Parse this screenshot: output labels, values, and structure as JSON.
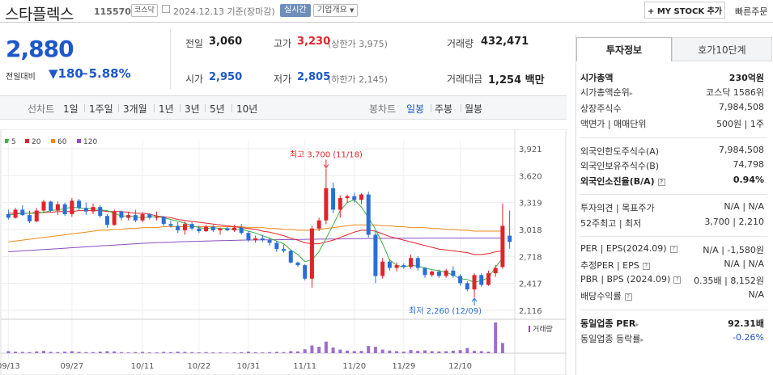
{
  "header": {
    "title": "스타플렉스",
    "code": "115570",
    "market": "코스닥",
    "date_text": "2024.12.13  기준(장마감)",
    "realtime_label": "실시간",
    "overview_label": "기업개요",
    "mystock_label": "+ MY STOCK 추가",
    "quick_order_label": "빠른주문"
  },
  "quote": {
    "price": "2,880",
    "change_label": "전일대비",
    "change": "▼180",
    "change_pct": "−5.88%",
    "prev_close_label": "전일",
    "prev_close": "3,060",
    "high_label": "고가",
    "high": "3,230",
    "upper_limit": "(상한가 3,975)",
    "volume_label": "거래량",
    "volume": "432,471",
    "open_label": "시가",
    "open": "2,950",
    "low_label": "저가",
    "low": "2,805",
    "lower_limit": "(하한가 2,145)",
    "value_label": "거래대금",
    "value": "1,254 백만"
  },
  "toolbar": {
    "line_chart_label": "선차트",
    "ranges": [
      "1일",
      "1주일",
      "3개월",
      "1년",
      "3년",
      "5년",
      "10년"
    ],
    "candle_chart_label": "봉차트",
    "periods": [
      "일봉",
      "주봉",
      "월봉"
    ],
    "active_period": "일봉"
  },
  "chart_data": {
    "type": "candlestick",
    "ma_legend": [
      {
        "name": "5",
        "color": "#3cb043"
      },
      {
        "name": "20",
        "color": "#e0242c"
      },
      {
        "name": "60",
        "color": "#f08a1a"
      },
      {
        "name": "120",
        "color": "#8a4fc0"
      }
    ],
    "y_ticks": [
      "3,921",
      "3,620",
      "3,319",
      "3,018",
      "2,718",
      "2,417",
      "2,116"
    ],
    "ylim": [
      2116,
      3921
    ],
    "x_ticks": [
      "09/13",
      "09/27",
      "10/11",
      "10/22",
      "10/31",
      "11/11",
      "11/20",
      "11/29",
      "12/10"
    ],
    "high_annotation": "최고 3,700 (11/18)",
    "low_annotation": "최저 2,260 (12/09)",
    "volume_label": "거래량",
    "candles": [
      {
        "o": 3190,
        "h": 3240,
        "l": 3130,
        "c": 3150
      },
      {
        "o": 3150,
        "h": 3260,
        "l": 3140,
        "c": 3240
      },
      {
        "o": 3240,
        "h": 3290,
        "l": 3170,
        "c": 3180
      },
      {
        "o": 3180,
        "h": 3230,
        "l": 3090,
        "c": 3110
      },
      {
        "o": 3110,
        "h": 3260,
        "l": 3100,
        "c": 3230
      },
      {
        "o": 3230,
        "h": 3350,
        "l": 3200,
        "c": 3330
      },
      {
        "o": 3330,
        "h": 3340,
        "l": 3210,
        "c": 3230
      },
      {
        "o": 3230,
        "h": 3330,
        "l": 3180,
        "c": 3300
      },
      {
        "o": 3300,
        "h": 3320,
        "l": 3170,
        "c": 3190
      },
      {
        "o": 3190,
        "h": 3370,
        "l": 3160,
        "c": 3340
      },
      {
        "o": 3340,
        "h": 3360,
        "l": 3230,
        "c": 3260
      },
      {
        "o": 3260,
        "h": 3320,
        "l": 3180,
        "c": 3220
      },
      {
        "o": 3220,
        "h": 3310,
        "l": 3190,
        "c": 3270
      },
      {
        "o": 3270,
        "h": 3290,
        "l": 3150,
        "c": 3170
      },
      {
        "o": 3170,
        "h": 3190,
        "l": 3040,
        "c": 3070
      },
      {
        "o": 3070,
        "h": 3240,
        "l": 3060,
        "c": 3220
      },
      {
        "o": 3220,
        "h": 3230,
        "l": 3120,
        "c": 3150
      },
      {
        "o": 3150,
        "h": 3220,
        "l": 3120,
        "c": 3180
      },
      {
        "o": 3180,
        "h": 3240,
        "l": 3100,
        "c": 3120
      },
      {
        "o": 3120,
        "h": 3210,
        "l": 3100,
        "c": 3190
      },
      {
        "o": 3190,
        "h": 3200,
        "l": 3130,
        "c": 3150
      },
      {
        "o": 3150,
        "h": 3220,
        "l": 3120,
        "c": 3160
      },
      {
        "o": 3160,
        "h": 3170,
        "l": 3060,
        "c": 3080
      },
      {
        "o": 3080,
        "h": 3120,
        "l": 3040,
        "c": 3060
      },
      {
        "o": 3060,
        "h": 3100,
        "l": 2980,
        "c": 3010
      },
      {
        "o": 3010,
        "h": 3110,
        "l": 2960,
        "c": 3080
      },
      {
        "o": 3080,
        "h": 3100,
        "l": 3010,
        "c": 3030
      },
      {
        "o": 3030,
        "h": 3060,
        "l": 2980,
        "c": 3000
      },
      {
        "o": 3000,
        "h": 3070,
        "l": 2990,
        "c": 3050
      },
      {
        "o": 3050,
        "h": 3070,
        "l": 2990,
        "c": 3010
      },
      {
        "o": 3010,
        "h": 3040,
        "l": 2960,
        "c": 3030
      },
      {
        "o": 3030,
        "h": 3050,
        "l": 3000,
        "c": 3010
      },
      {
        "o": 3010,
        "h": 3070,
        "l": 2990,
        "c": 3040
      },
      {
        "o": 3040,
        "h": 3080,
        "l": 2960,
        "c": 2980
      },
      {
        "o": 2980,
        "h": 3000,
        "l": 2880,
        "c": 2900
      },
      {
        "o": 2900,
        "h": 2950,
        "l": 2870,
        "c": 2920
      },
      {
        "o": 2920,
        "h": 2960,
        "l": 2880,
        "c": 2900
      },
      {
        "o": 2900,
        "h": 2930,
        "l": 2840,
        "c": 2870
      },
      {
        "o": 2870,
        "h": 2890,
        "l": 2770,
        "c": 2800
      },
      {
        "o": 2800,
        "h": 2850,
        "l": 2760,
        "c": 2780
      },
      {
        "o": 2780,
        "h": 2790,
        "l": 2640,
        "c": 2650
      },
      {
        "o": 2650,
        "h": 2660,
        "l": 2600,
        "c": 2620
      },
      {
        "o": 2620,
        "h": 2630,
        "l": 2450,
        "c": 2470
      },
      {
        "o": 2470,
        "h": 3060,
        "l": 2370,
        "c": 3030
      },
      {
        "o": 3030,
        "h": 3150,
        "l": 3000,
        "c": 3120
      },
      {
        "o": 3120,
        "h": 3700,
        "l": 3080,
        "c": 3480
      },
      {
        "o": 3480,
        "h": 3540,
        "l": 3200,
        "c": 3240
      },
      {
        "o": 3240,
        "h": 3400,
        "l": 3150,
        "c": 3370
      },
      {
        "o": 3370,
        "h": 3410,
        "l": 3320,
        "c": 3390
      },
      {
        "o": 3390,
        "h": 3430,
        "l": 3320,
        "c": 3350
      },
      {
        "o": 3350,
        "h": 3420,
        "l": 3300,
        "c": 3410
      },
      {
        "o": 3410,
        "h": 3440,
        "l": 2930,
        "c": 2960
      },
      {
        "o": 2960,
        "h": 3000,
        "l": 2420,
        "c": 2500
      },
      {
        "o": 2500,
        "h": 2700,
        "l": 2470,
        "c": 2660
      },
      {
        "o": 2660,
        "h": 2690,
        "l": 2560,
        "c": 2590
      },
      {
        "o": 2590,
        "h": 2650,
        "l": 2550,
        "c": 2620
      },
      {
        "o": 2620,
        "h": 2640,
        "l": 2580,
        "c": 2600
      },
      {
        "o": 2600,
        "h": 2740,
        "l": 2580,
        "c": 2700
      },
      {
        "o": 2700,
        "h": 2720,
        "l": 2560,
        "c": 2590
      },
      {
        "o": 2590,
        "h": 2600,
        "l": 2480,
        "c": 2510
      },
      {
        "o": 2510,
        "h": 2560,
        "l": 2490,
        "c": 2550
      },
      {
        "o": 2550,
        "h": 2570,
        "l": 2480,
        "c": 2500
      },
      {
        "o": 2500,
        "h": 2580,
        "l": 2480,
        "c": 2560
      },
      {
        "o": 2560,
        "h": 2610,
        "l": 2480,
        "c": 2500
      },
      {
        "o": 2500,
        "h": 2520,
        "l": 2390,
        "c": 2420
      },
      {
        "o": 2420,
        "h": 2440,
        "l": 2330,
        "c": 2350
      },
      {
        "o": 2350,
        "h": 2530,
        "l": 2260,
        "c": 2510
      },
      {
        "o": 2510,
        "h": 2530,
        "l": 2380,
        "c": 2400
      },
      {
        "o": 2400,
        "h": 2560,
        "l": 2390,
        "c": 2530
      },
      {
        "o": 2530,
        "h": 2620,
        "l": 2490,
        "c": 2590
      },
      {
        "o": 2600,
        "h": 3310,
        "l": 2580,
        "c": 3060
      },
      {
        "o": 2950,
        "h": 3230,
        "l": 2805,
        "c": 2880
      }
    ],
    "ma5": [
      3180,
      3190,
      3200,
      3200,
      3200,
      3210,
      3230,
      3240,
      3250,
      3270,
      3260,
      3250,
      3250,
      3240,
      3230,
      3200,
      3170,
      3170,
      3160,
      3150,
      3160,
      3160,
      3150,
      3130,
      3110,
      3090,
      3060,
      3040,
      3030,
      3040,
      3030,
      3030,
      3020,
      3020,
      3000,
      2980,
      2950,
      2920,
      2890,
      2860,
      2790,
      2740,
      2660,
      2680,
      2770,
      2920,
      3070,
      3230,
      3320,
      3350,
      3270,
      3150,
      3020,
      2860,
      2680,
      2620,
      2600,
      2620,
      2610,
      2590,
      2570,
      2560,
      2540,
      2510,
      2470,
      2460,
      2430,
      2450,
      2480,
      2600,
      2700
    ],
    "ma20": [
      3200,
      3200,
      3200,
      3200,
      3210,
      3210,
      3210,
      3220,
      3220,
      3220,
      3230,
      3230,
      3230,
      3230,
      3220,
      3220,
      3220,
      3210,
      3200,
      3200,
      3190,
      3170,
      3160,
      3150,
      3130,
      3120,
      3110,
      3100,
      3090,
      3080,
      3070,
      3060,
      3050,
      3040,
      3030,
      3020,
      3000,
      2990,
      2970,
      2950,
      2920,
      2900,
      2870,
      2860,
      2860,
      2880,
      2900,
      2930,
      2960,
      2990,
      3010,
      3010,
      3000,
      2970,
      2940,
      2920,
      2900,
      2880,
      2860,
      2840,
      2820,
      2800,
      2790,
      2780,
      2770,
      2760,
      2740,
      2740,
      2750,
      2770,
      2780
    ],
    "ma60": [
      2880,
      2890,
      2900,
      2910,
      2920,
      2930,
      2940,
      2950,
      2960,
      2970,
      2980,
      2990,
      3000,
      3010,
      3010,
      3020,
      3020,
      3030,
      3030,
      3040,
      3040,
      3040,
      3050,
      3050,
      3050,
      3050,
      3050,
      3050,
      3050,
      3050,
      3050,
      3050,
      3050,
      3050,
      3040,
      3040,
      3040,
      3030,
      3030,
      3020,
      3020,
      3010,
      3010,
      3010,
      3020,
      3030,
      3040,
      3050,
      3060,
      3070,
      3070,
      3070,
      3070,
      3060,
      3060,
      3050,
      3050,
      3040,
      3040,
      3040,
      3030,
      3030,
      3020,
      3020,
      3010,
      3010,
      3000,
      3000,
      3000,
      3000,
      3000
    ],
    "ma120": [
      2770,
      2775,
      2780,
      2785,
      2790,
      2795,
      2800,
      2805,
      2810,
      2815,
      2820,
      2825,
      2830,
      2835,
      2840,
      2845,
      2850,
      2855,
      2860,
      2865,
      2868,
      2871,
      2874,
      2877,
      2880,
      2883,
      2886,
      2888,
      2890,
      2892,
      2894,
      2896,
      2898,
      2900,
      2901,
      2902,
      2903,
      2904,
      2905,
      2906,
      2907,
      2908,
      2909,
      2910,
      2911,
      2912,
      2913,
      2914,
      2915,
      2916,
      2917,
      2918,
      2919,
      2920,
      2920,
      2921,
      2921,
      2922,
      2922,
      2923,
      2923,
      2923,
      2923,
      2923,
      2923,
      2923,
      2923,
      2923,
      2923,
      2923,
      2923
    ],
    "volume": [
      8,
      6,
      5,
      4,
      7,
      9,
      5,
      4,
      6,
      8,
      5,
      4,
      4,
      6,
      8,
      7,
      4,
      3,
      4,
      5,
      3,
      3,
      5,
      4,
      6,
      5,
      4,
      3,
      4,
      3,
      3,
      2,
      3,
      4,
      6,
      4,
      3,
      4,
      5,
      4,
      8,
      7,
      15,
      30,
      25,
      45,
      22,
      14,
      10,
      8,
      9,
      28,
      25,
      14,
      10,
      8,
      6,
      12,
      9,
      11,
      8,
      7,
      8,
      10,
      12,
      20,
      9,
      8,
      6,
      120,
      40
    ]
  },
  "right_panel": {
    "tabs": [
      "투자정보",
      "호가10단계"
    ],
    "rows": [
      {
        "label": "시가총액",
        "value": "230억원",
        "bold": true
      },
      {
        "label": "시가총액순위",
        "value": "코스닥 1586위",
        "arrow": true
      },
      {
        "label": "상장주식수",
        "value": "7,984,508"
      },
      {
        "label": "액면가 | 매매단위",
        "value": "500원 | 1주"
      },
      {
        "label": "외국인한도주식수(A)",
        "value": "7,984,508"
      },
      {
        "label": "외국인보유주식수(B)",
        "value": "74,798"
      },
      {
        "label": "외국인소진율(B/A)",
        "value": "0.94%",
        "bold": true,
        "q": true
      },
      {
        "label": "투자의견 | 목표주가",
        "value": "N/A | N/A"
      },
      {
        "label": "52주최고 | 최저",
        "value": "3,700 | 2,210"
      },
      {
        "label": "PER | EPS(2024.09)",
        "value": "N/A | -1,580원",
        "q": true
      },
      {
        "label": "추정PER | EPS",
        "value": "N/A | N/A",
        "q": true
      },
      {
        "label": "PBR | BPS (2024.09)",
        "value": "0.35배 | 8,152원",
        "q": true
      },
      {
        "label": "배당수익률",
        "value": "N/A",
        "q": true
      },
      {
        "label": "동일업종 PER",
        "value": "92.31배",
        "bold": true,
        "arrow": true
      },
      {
        "label": "동일업종 등락률",
        "value": "-0.26%",
        "arrow": true,
        "blue": true
      }
    ]
  }
}
